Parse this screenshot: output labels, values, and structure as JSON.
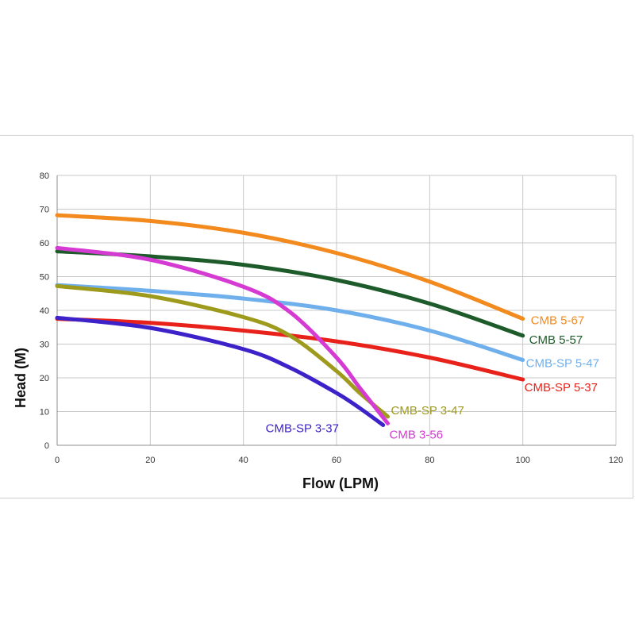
{
  "chart_data": {
    "type": "line",
    "title": "",
    "xlabel": "Flow (LPM)",
    "ylabel": "Head (M)",
    "xlim": [
      0,
      120
    ],
    "ylim": [
      0,
      80
    ],
    "x_ticks": [
      "0",
      "20",
      "40",
      "60",
      "80",
      "100",
      "120"
    ],
    "y_ticks": [
      "0",
      "10",
      "20",
      "30",
      "40",
      "50",
      "60",
      "70",
      "80"
    ],
    "grid": true,
    "legend": "inline labels at curve ends",
    "series": [
      {
        "name": "CMB 5-67",
        "color": "#f28a1e",
        "points": [
          [
            0,
            68.2
          ],
          [
            20,
            66.5
          ],
          [
            40,
            63
          ],
          [
            60,
            57
          ],
          [
            80,
            48.5
          ],
          [
            100,
            37.5
          ]
        ]
      },
      {
        "name": "CMB 5-57",
        "color": "#1e5b2a",
        "points": [
          [
            0,
            57.5
          ],
          [
            20,
            56
          ],
          [
            40,
            53.5
          ],
          [
            60,
            49
          ],
          [
            80,
            42
          ],
          [
            100,
            32.5
          ]
        ]
      },
      {
        "name": "CMB-SP 5-47",
        "color": "#6fb0ec",
        "points": [
          [
            0,
            47.5
          ],
          [
            20,
            45.8
          ],
          [
            40,
            43.5
          ],
          [
            60,
            40
          ],
          [
            80,
            34
          ],
          [
            100,
            25.3
          ]
        ]
      },
      {
        "name": "CMB-SP 5-37",
        "color": "#e8221a",
        "points": [
          [
            0,
            37.5
          ],
          [
            20,
            36.3
          ],
          [
            40,
            34
          ],
          [
            60,
            30.8
          ],
          [
            80,
            26
          ],
          [
            100,
            19.5
          ]
        ]
      },
      {
        "name": "CMB-SP 3-47",
        "color": "#9e9a1c",
        "points": [
          [
            0,
            47.2
          ],
          [
            20,
            44.2
          ],
          [
            40,
            38
          ],
          [
            50,
            32.5
          ],
          [
            60,
            22
          ],
          [
            65,
            15.5
          ],
          [
            71,
            8.5
          ]
        ]
      },
      {
        "name": "CMB 3-56",
        "color": "#d53ad3",
        "points": [
          [
            0,
            58.5
          ],
          [
            20,
            55
          ],
          [
            40,
            47
          ],
          [
            50,
            39.5
          ],
          [
            60,
            26
          ],
          [
            65,
            17
          ],
          [
            71,
            6.5
          ]
        ]
      },
      {
        "name": "CMB-SP 3-37",
        "color": "#3c22c8",
        "points": [
          [
            0,
            37.8
          ],
          [
            20,
            34.8
          ],
          [
            40,
            28.5
          ],
          [
            50,
            23
          ],
          [
            60,
            15.5
          ],
          [
            65,
            11
          ],
          [
            70,
            6
          ]
        ]
      }
    ]
  }
}
